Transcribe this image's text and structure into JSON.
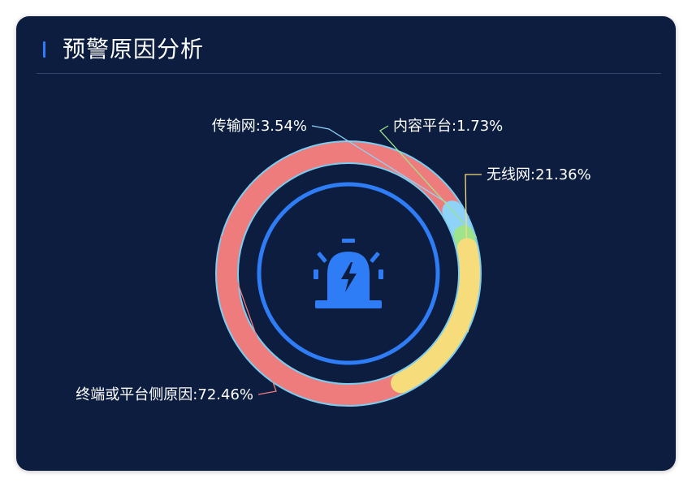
{
  "panel": {
    "title": "预警原因分析"
  },
  "colors": {
    "panel_bg": "#0c1d3f",
    "ring_border": "#7ccdf0",
    "inner_circle": "#2f7df6",
    "icon": "#2f7df6"
  },
  "center_icon": "alarm-light-icon",
  "chart_data": {
    "type": "pie",
    "style": "donut",
    "title": "预警原因分析",
    "slices": [
      {
        "name": "终端或平台侧原因",
        "value": 72.46,
        "label": "终端或平台侧原因:72.46%",
        "color": "#ef7c7c"
      },
      {
        "name": "传输网",
        "value": 3.54,
        "label": "传输网:3.54%",
        "color": "#8fd3f8"
      },
      {
        "name": "内容平台",
        "value": 1.73,
        "label": "内容平台:1.73%",
        "color": "#9fe38d"
      },
      {
        "name": "无线网",
        "value": 21.36,
        "label": "无线网:21.36%",
        "color": "#f7dc7c"
      }
    ]
  }
}
